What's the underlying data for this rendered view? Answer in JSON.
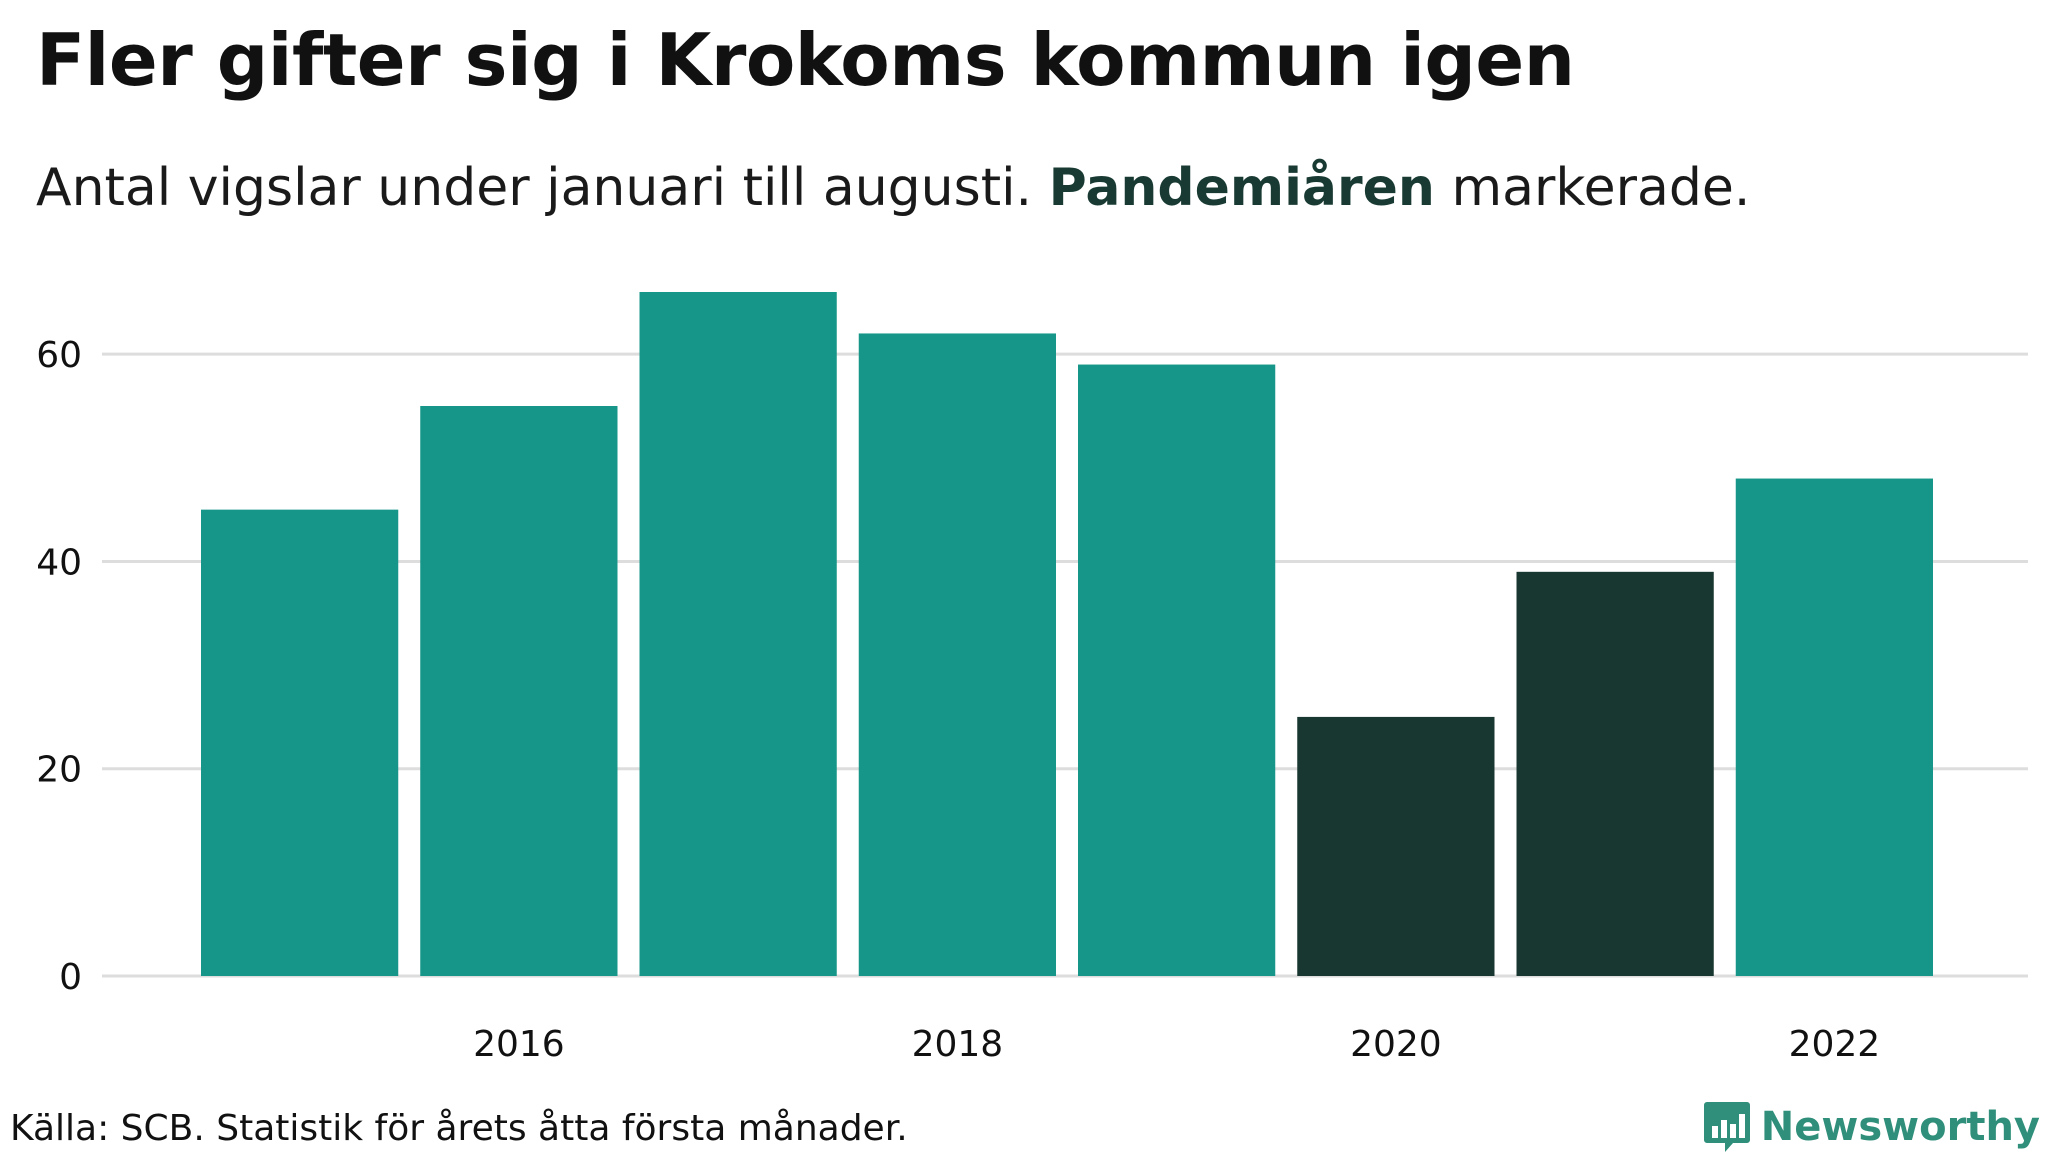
{
  "title": "Fler gifter sig i Krokoms kommun igen",
  "subtitle": {
    "before": "Antal vigslar under januari till augusti. ",
    "highlight": "Pandemiåren",
    "after": " markerade."
  },
  "footer": {
    "source": "Källa: SCB. Statistik för årets åtta första månader.",
    "brand": "Newsworthy",
    "brand_icon": "bar-chart-speech-bubble-icon"
  },
  "colors": {
    "normal": "#159688",
    "pandemic": "#183731",
    "grid": "#dddddd",
    "text": "#111111",
    "brand": "#2f8f7a"
  },
  "chart_data": {
    "type": "bar",
    "categories": [
      "2015",
      "2016",
      "2017",
      "2018",
      "2019",
      "2020",
      "2021",
      "2022"
    ],
    "values": [
      45,
      55,
      66,
      62,
      59,
      25,
      39,
      48
    ],
    "highlighted": [
      false,
      false,
      false,
      false,
      false,
      true,
      true,
      false
    ],
    "x_tick_labels": [
      "2016",
      "2018",
      "2020",
      "2022"
    ],
    "y_ticks": [
      0,
      20,
      40,
      60
    ],
    "ylim": [
      0,
      66
    ],
    "grid": true,
    "legend": "none"
  }
}
